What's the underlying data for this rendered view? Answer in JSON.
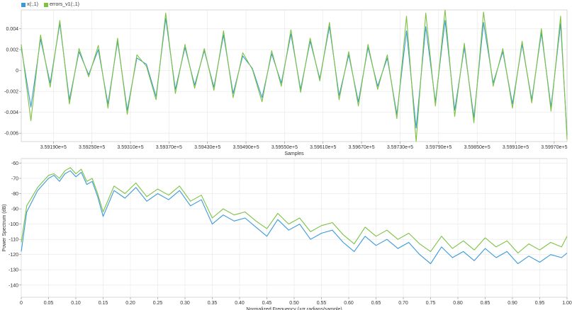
{
  "chart_data": [
    {
      "type": "line",
      "legend": {
        "placement": "top-left",
        "entries": [
          {
            "label": "x(:,1)",
            "color": "#3a9ad9"
          },
          {
            "label": "errors_v1(:,1)",
            "color": "#7dc242"
          }
        ]
      },
      "xlabel": "Samples",
      "ylabel": "",
      "xlim": [
        359140,
        359990
      ],
      "ylim": [
        -0.0068,
        0.0058
      ],
      "xticks": [
        359190,
        359250,
        359310,
        359370,
        359430,
        359490,
        359550,
        359610,
        359670,
        359730,
        359790,
        359850,
        359910,
        359970
      ],
      "xtick_labels": [
        "3.59190e+5",
        "3.59250e+5",
        "3.59310e+5",
        "3.59370e+5",
        "3.59430e+5",
        "3.59490e+5",
        "3.59550e+5",
        "3.59610e+5",
        "3.59670e+5",
        "3.59730e+5",
        "3.59790e+5",
        "3.59850e+5",
        "3.59910e+5",
        "3.59970e+5"
      ],
      "yticks": [
        0.004,
        0.002,
        0,
        -0.002,
        -0.004,
        -0.006
      ],
      "ytick_labels": [
        "0.004",
        "0.002",
        "0",
        "-0.002",
        "-0.004",
        "-0.006"
      ],
      "grid": true,
      "series": [
        {
          "name": "x(:,1)",
          "color": "#3a9ad9",
          "x": [
            359140,
            359155,
            359170,
            359185,
            359200,
            359215,
            359230,
            359245,
            359260,
            359275,
            359290,
            359305,
            359320,
            359335,
            359350,
            359365,
            359380,
            359395,
            359410,
            359425,
            359440,
            359455,
            359470,
            359485,
            359500,
            359515,
            359530,
            359545,
            359560,
            359575,
            359590,
            359605,
            359620,
            359635,
            359650,
            359665,
            359680,
            359695,
            359710,
            359725,
            359740,
            359755,
            359770,
            359785,
            359800,
            359815,
            359830,
            359845,
            359860,
            359875,
            359890,
            359905,
            359920,
            359935,
            359950,
            359965,
            359980,
            359990
          ],
          "y": [
            0.0022,
            -0.0035,
            0.003,
            -0.0012,
            0.0045,
            -0.0028,
            0.0018,
            -0.0004,
            0.002,
            -0.0032,
            0.0028,
            -0.0038,
            0.0012,
            0.0006,
            -0.0025,
            0.005,
            -0.0018,
            0.0022,
            -0.0014,
            0.0019,
            -0.0016,
            0.0034,
            -0.0022,
            0.0014,
            0.0002,
            -0.0026,
            0.0016,
            -0.0012,
            0.0035,
            -0.0018,
            0.0028,
            -0.0008,
            0.0042,
            -0.0024,
            0.0015,
            -0.003,
            0.0022,
            -0.0015,
            0.0012,
            -0.0042,
            0.0038,
            -0.0055,
            0.0042,
            -0.003,
            0.0048,
            -0.0038,
            0.0022,
            -0.0045,
            0.0046,
            -0.0012,
            0.0018,
            -0.0032,
            0.0025,
            -0.0028,
            0.0036,
            -0.0035,
            0.0045,
            -0.0062
          ]
        },
        {
          "name": "errors_v1(:,1)",
          "color": "#7dc242",
          "x": [
            359140,
            359155,
            359170,
            359185,
            359200,
            359215,
            359230,
            359245,
            359260,
            359275,
            359290,
            359305,
            359320,
            359335,
            359350,
            359365,
            359380,
            359395,
            359410,
            359425,
            359440,
            359455,
            359470,
            359485,
            359500,
            359515,
            359530,
            359545,
            359560,
            359575,
            359590,
            359605,
            359620,
            359635,
            359650,
            359665,
            359680,
            359695,
            359710,
            359725,
            359740,
            359755,
            359770,
            359785,
            359800,
            359815,
            359830,
            359845,
            359860,
            359875,
            359890,
            359905,
            359920,
            359935,
            359950,
            359965,
            359980,
            359990
          ],
          "y": [
            0.0025,
            -0.0048,
            0.0034,
            -0.0016,
            0.0048,
            -0.0032,
            0.0021,
            -0.0006,
            0.0024,
            -0.0036,
            0.0031,
            -0.0042,
            0.0015,
            0.0004,
            -0.0028,
            0.0055,
            -0.0022,
            0.0025,
            -0.0017,
            0.0021,
            -0.0019,
            0.0038,
            -0.0026,
            0.0017,
            0.0001,
            -0.003,
            0.0019,
            -0.0015,
            0.0039,
            -0.0021,
            0.0031,
            -0.001,
            0.0046,
            -0.0028,
            0.0018,
            -0.0034,
            0.0025,
            -0.0018,
            0.0015,
            -0.0046,
            0.0052,
            -0.0068,
            0.0055,
            -0.0034,
            0.0058,
            -0.0044,
            0.0026,
            -0.005,
            0.0056,
            -0.0015,
            0.0021,
            -0.0036,
            0.0028,
            -0.0031,
            0.004,
            -0.0039,
            0.0052,
            -0.0066
          ]
        }
      ]
    },
    {
      "type": "line",
      "xlabel": "Normalized Frequency (×π radians/sample)",
      "ylabel": "Power Spectrum (dB)",
      "xlim": [
        0,
        1.0
      ],
      "ylim": [
        -148,
        -57
      ],
      "xticks": [
        0,
        0.05,
        0.1,
        0.15,
        0.2,
        0.25,
        0.3,
        0.35,
        0.4,
        0.45,
        0.5,
        0.55,
        0.6,
        0.65,
        0.7,
        0.75,
        0.8,
        0.85,
        0.9,
        0.95,
        1.0
      ],
      "xtick_labels": [
        "0",
        "0.05",
        "0.10",
        "0.15",
        "0.20",
        "0.25",
        "0.30",
        "0.35",
        "0.40",
        "0.45",
        "0.50",
        "0.55",
        "0.60",
        "0.65",
        "0.70",
        "0.75",
        "0.80",
        "0.85",
        "0.90",
        "0.95",
        "1.00"
      ],
      "yticks": [
        -60,
        -70,
        -80,
        -90,
        -100,
        -110,
        -120,
        -130,
        -140
      ],
      "ytick_labels": [
        "-60",
        "-70",
        "-80",
        "-90",
        "-100",
        "-110",
        "-120",
        "-130",
        "-140"
      ],
      "grid": true,
      "series": [
        {
          "name": "x(:,1)",
          "color": "#3a9ad9",
          "x": [
            0,
            0.01,
            0.02,
            0.03,
            0.04,
            0.05,
            0.06,
            0.07,
            0.08,
            0.09,
            0.1,
            0.11,
            0.12,
            0.13,
            0.14,
            0.15,
            0.17,
            0.19,
            0.21,
            0.23,
            0.25,
            0.27,
            0.29,
            0.31,
            0.33,
            0.35,
            0.37,
            0.39,
            0.41,
            0.43,
            0.45,
            0.47,
            0.49,
            0.51,
            0.53,
            0.55,
            0.57,
            0.59,
            0.61,
            0.63,
            0.65,
            0.67,
            0.69,
            0.71,
            0.73,
            0.75,
            0.77,
            0.79,
            0.81,
            0.83,
            0.85,
            0.87,
            0.89,
            0.91,
            0.93,
            0.95,
            0.97,
            0.99,
            1.0
          ],
          "y": [
            -118,
            -92,
            -85,
            -78,
            -74,
            -70,
            -68,
            -72,
            -67,
            -65,
            -69,
            -66,
            -74,
            -72,
            -82,
            -95,
            -78,
            -83,
            -76,
            -85,
            -80,
            -84,
            -78,
            -88,
            -84,
            -100,
            -94,
            -98,
            -96,
            -102,
            -108,
            -97,
            -104,
            -100,
            -110,
            -106,
            -104,
            -112,
            -118,
            -108,
            -114,
            -110,
            -116,
            -112,
            -120,
            -126,
            -115,
            -122,
            -118,
            -124,
            -116,
            -122,
            -118,
            -126,
            -121,
            -125,
            -120,
            -122,
            -119
          ]
        },
        {
          "name": "errors_v1(:,1)",
          "color": "#7dc242",
          "x": [
            0,
            0.01,
            0.02,
            0.03,
            0.04,
            0.05,
            0.06,
            0.07,
            0.08,
            0.09,
            0.1,
            0.11,
            0.12,
            0.13,
            0.14,
            0.15,
            0.17,
            0.19,
            0.21,
            0.23,
            0.25,
            0.27,
            0.29,
            0.31,
            0.33,
            0.35,
            0.37,
            0.39,
            0.41,
            0.43,
            0.45,
            0.47,
            0.49,
            0.51,
            0.53,
            0.55,
            0.57,
            0.59,
            0.61,
            0.63,
            0.65,
            0.67,
            0.69,
            0.71,
            0.73,
            0.75,
            0.77,
            0.79,
            0.81,
            0.83,
            0.85,
            0.87,
            0.89,
            0.91,
            0.93,
            0.95,
            0.97,
            0.99,
            1.0
          ],
          "y": [
            -112,
            -88,
            -82,
            -76,
            -72,
            -68,
            -67,
            -70,
            -65,
            -63,
            -67,
            -64,
            -72,
            -70,
            -80,
            -92,
            -75,
            -80,
            -73,
            -82,
            -77,
            -81,
            -75,
            -85,
            -81,
            -96,
            -90,
            -94,
            -92,
            -98,
            -103,
            -93,
            -100,
            -96,
            -105,
            -101,
            -99,
            -107,
            -113,
            -102,
            -108,
            -104,
            -110,
            -106,
            -113,
            -118,
            -108,
            -116,
            -111,
            -117,
            -109,
            -115,
            -111,
            -119,
            -113,
            -117,
            -112,
            -115,
            -108
          ]
        }
      ]
    }
  ]
}
